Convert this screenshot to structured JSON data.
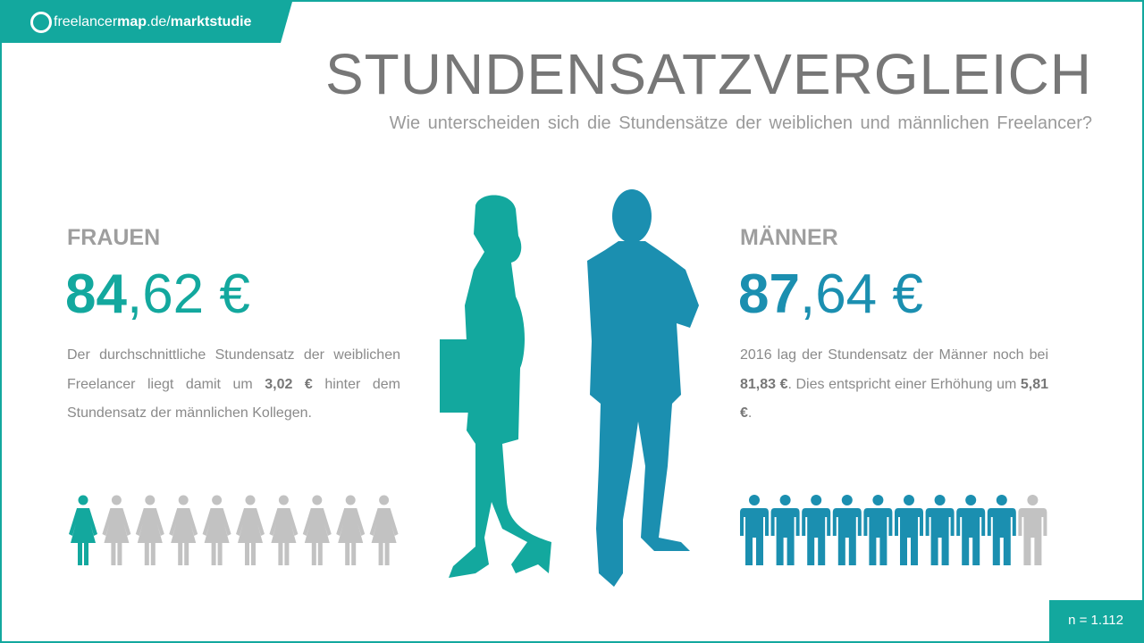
{
  "header": {
    "logo": {
      "brand_light": "freelancer",
      "brand_bold": "map",
      "domain": ".de/",
      "section": "marktstudie"
    },
    "title": "STUNDENSATZVERGLEICH",
    "subtitle": "Wie unterscheiden sich die Stundensätze der weiblichen und männlichen Freelancer?"
  },
  "frauen": {
    "label": "FRAUEN",
    "value_bold": "84",
    "value_rest": ",62 €",
    "text": [
      "Der durchschnittliche Stundensatz der weiblichen Freelancer liegt  damit um ",
      "3,02 €",
      " hinter dem Stundensatz der männlichen Kollegen."
    ],
    "pictogram": {
      "count": 10,
      "filled": 1
    }
  },
  "maenner": {
    "label": "MÄNNER",
    "value_bold": "87",
    "value_rest": ",64 €",
    "text": [
      "2016 lag der Stundensatz der Männer noch bei ",
      "81,83 €",
      ". Dies entspricht einer Erhöhung um ",
      "5,81 €",
      "."
    ],
    "pictogram": {
      "count": 10,
      "filled": 9
    }
  },
  "footer": {
    "sample": "n = 1.112"
  }
}
